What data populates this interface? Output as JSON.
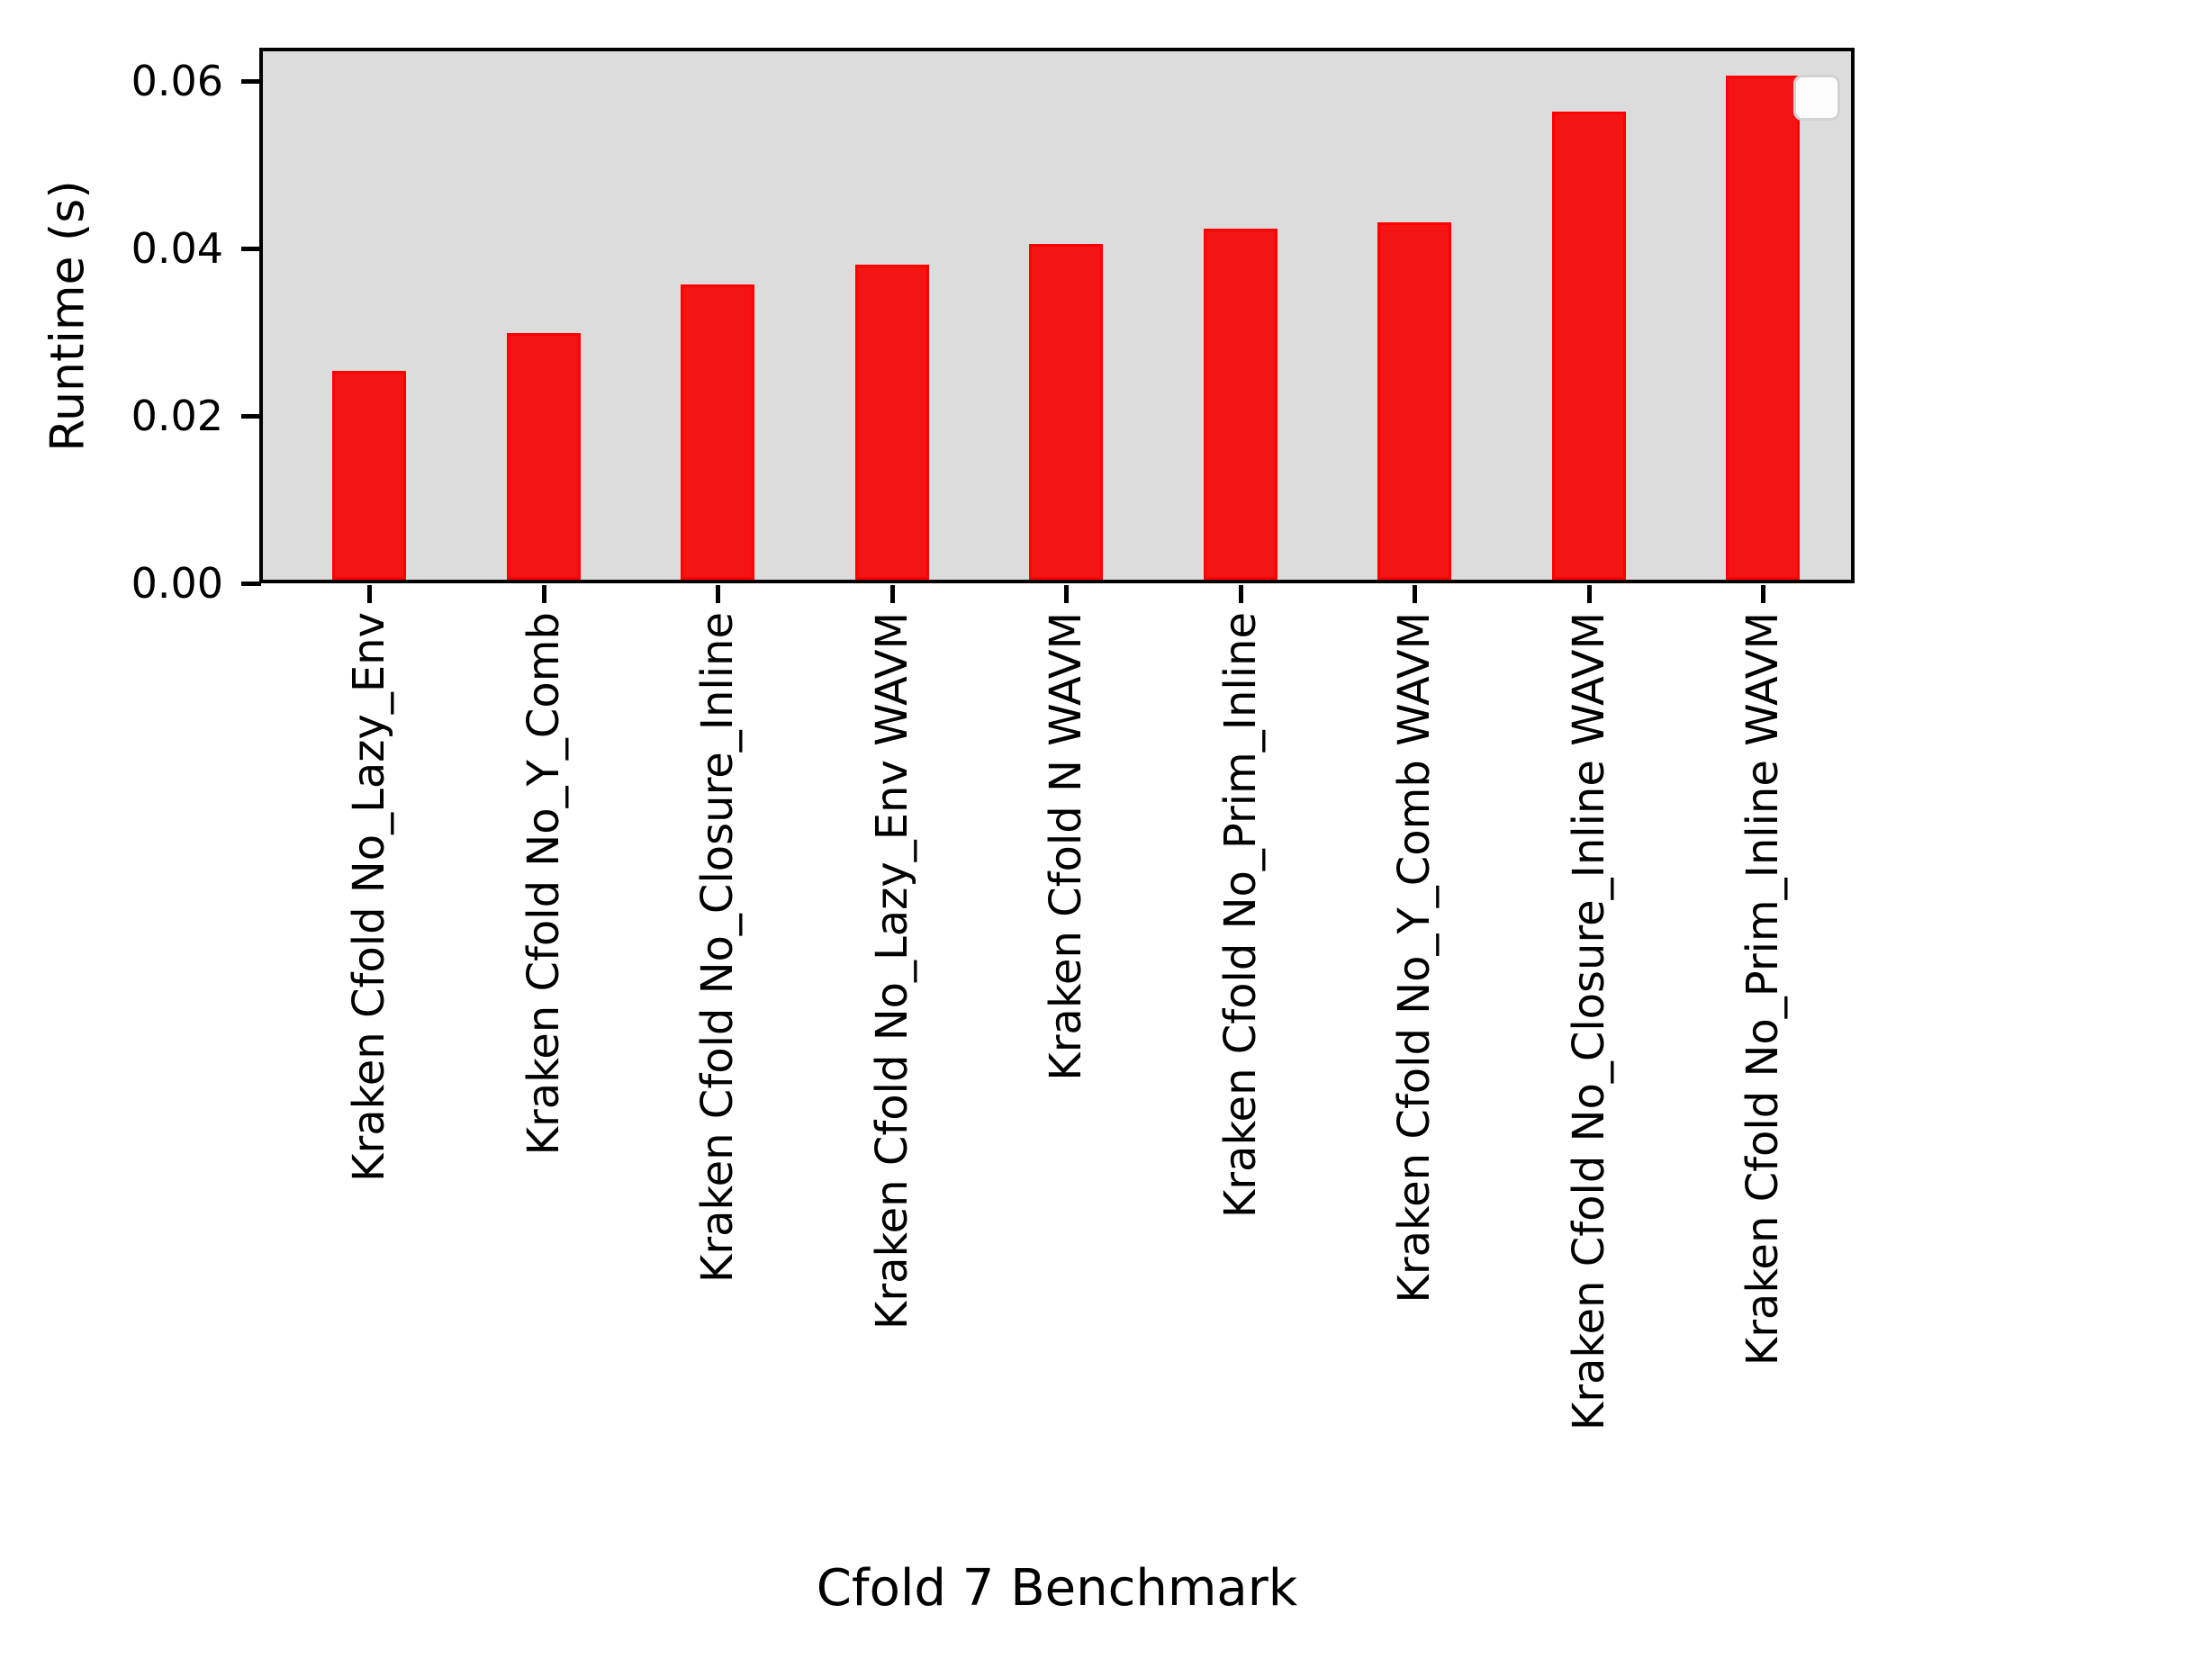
{
  "chart_data": {
    "type": "bar",
    "title": "",
    "xlabel": "Cfold 7 Benchmark",
    "ylabel": "Runtime (s)",
    "categories": [
      "Kraken Cfold No_Lazy_Env",
      "Kraken Cfold No_Y_Comb",
      "Kraken Cfold No_Closure_Inline",
      "Kraken Cfold No_Lazy_Env WAVM",
      "Kraken Cfold N WAVM",
      "Kraken Cfold No_Prim_Inline",
      "Kraken Cfold No_Y_Comb WAVM",
      "Kraken Cfold No_Closure_Inline WAVM",
      "Kraken Cfold No_Prim_Inline WAVM"
    ],
    "values": [
      0.0254,
      0.0299,
      0.0357,
      0.0381,
      0.0405,
      0.0424,
      0.0431,
      0.0563,
      0.0606
    ],
    "ytick_values": [
      0.0,
      0.02,
      0.04,
      0.06
    ],
    "ytick_labels": [
      "0.00",
      "0.02",
      "0.04",
      "0.06"
    ],
    "ylim": [
      0,
      0.0638
    ],
    "grid": false,
    "legend": {
      "visible": true,
      "position": "upper right",
      "entries": []
    },
    "colors": {
      "bar_fill": "#f41414",
      "bar_edge": "#ff0000",
      "plot_background": "#dcdcdc",
      "figure_background": "#ffffff",
      "axis": "#000000",
      "legend_background": "#fcfcfc",
      "legend_border": "#d2d2d2"
    }
  }
}
